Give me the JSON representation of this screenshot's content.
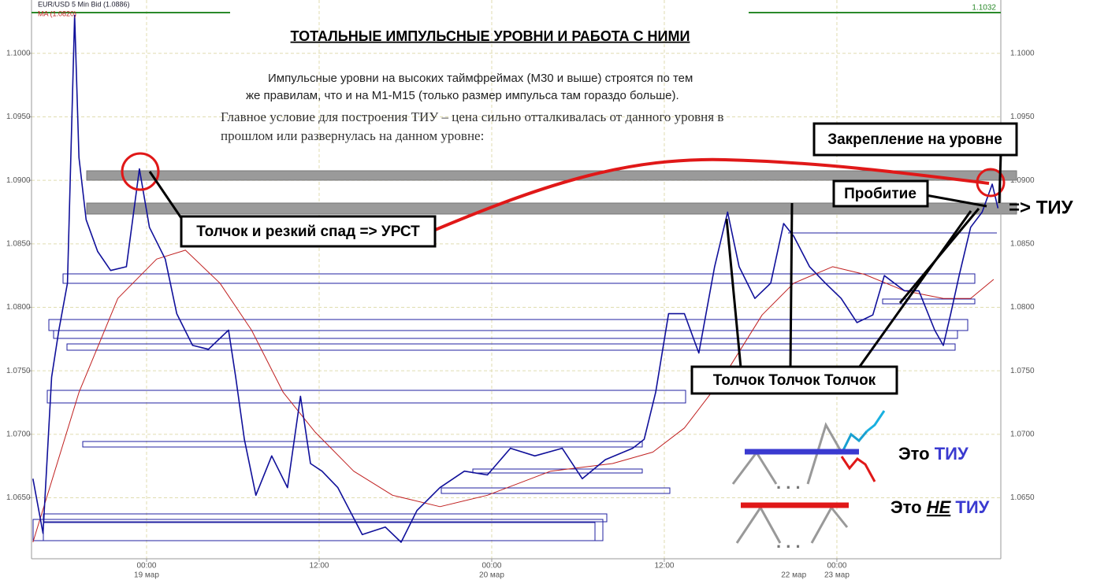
{
  "chart_data": {
    "type": "line",
    "header": {
      "instrument": "EUR/USD 5 Min Bid (1.0886)",
      "ma": "MA (1.0820)",
      "top_right": "1.1032"
    },
    "annotations": {
      "title": "ТОТАЛЬНЫЕ ИМПУЛЬСНЫЕ УРОВНИ И РАБОТА С НИМИ",
      "intro_lines": [
        "Импульсные уровни на высоких таймфреймах (М30 и выше) строятся по тем",
        "же правилам, что и на М1-М15 (только размер импульса там гораздо больше)."
      ],
      "condition_lines": [
        "Главное условие для построения ТИУ – цена сильно отталкивалась от данного уровня в",
        "прошлом или развернулась на данном уровне:"
      ],
      "push_urst": "Толчок и резкий спад => УРСТ",
      "fix": "Закрепление на уровне",
      "breakout": "Пробитие",
      "tiu": "=> ТИУ",
      "pushes": "Толчок Толчок Толчок",
      "is_tiu": [
        "Это",
        "ТИУ"
      ],
      "not_tiu": [
        "Это",
        "НЕ",
        "ТИУ"
      ]
    },
    "xlim": [
      0,
      67.4
    ],
    "xticks": [
      {
        "value": 8,
        "label": "00:00"
      },
      {
        "value": 20,
        "label": "12:00"
      },
      {
        "value": 32,
        "label": "00:00"
      },
      {
        "value": 44,
        "label": "12:00"
      },
      {
        "value": 56,
        "label": "00:00"
      }
    ],
    "xdates": [
      {
        "value": 8,
        "label": "19 мар"
      },
      {
        "value": 32,
        "label": "20 мар"
      },
      {
        "value": 53,
        "label": "22 мар"
      },
      {
        "value": 56,
        "label": "23 мар"
      }
    ],
    "ylim": [
      1.0602,
      1.1042
    ],
    "yticks": [
      {
        "value": 1.065,
        "label": "1.0650"
      },
      {
        "value": 1.07,
        "label": "1.0700"
      },
      {
        "value": 1.075,
        "label": "1.0750"
      },
      {
        "value": 1.08,
        "label": "1.0800"
      },
      {
        "value": 1.085,
        "label": "1.0850"
      },
      {
        "value": 1.09,
        "label": "1.0900"
      },
      {
        "value": 1.095,
        "label": "1.0950"
      },
      {
        "value": 1.1,
        "label": "1.1000"
      }
    ],
    "grid": true,
    "series": [
      {
        "name": "EUR/USD",
        "color": "#10109a",
        "x": [
          0.1,
          0.8,
          1.4,
          1.9,
          2.5,
          3.0,
          3.3,
          3.8,
          4.6,
          5.5,
          6.6,
          7.5,
          8.2,
          9.3,
          10.1,
          11.2,
          12.3,
          13.7,
          14.2,
          14.8,
          15.6,
          16.7,
          17.8,
          18.7,
          19.4,
          20.2,
          21.3,
          23.0,
          24.6,
          25.7,
          26.8,
          28.4,
          30.1,
          31.7,
          33.3,
          35.0,
          36.9,
          38.3,
          39.9,
          41.8,
          42.6,
          43.4,
          44.3,
          45.4,
          46.4,
          47.5,
          48.4,
          49.2,
          50.3,
          51.4,
          52.3,
          53.0,
          54.1,
          55.2,
          56.3,
          57.4,
          58.5,
          59.3,
          60.7,
          61.7,
          62.8,
          63.4,
          63.9,
          64.5,
          65.3,
          66.1,
          66.8,
          67.2
        ],
        "values": [
          1.0665,
          1.0622,
          1.0745,
          1.0782,
          1.0819,
          1.103,
          1.0918,
          1.0869,
          1.0844,
          1.0829,
          1.0832,
          1.0909,
          1.0863,
          1.0838,
          1.0795,
          1.077,
          1.0767,
          1.0782,
          1.0745,
          1.0696,
          1.0652,
          1.0683,
          1.0658,
          1.073,
          1.0677,
          1.0671,
          1.0658,
          1.0621,
          1.0627,
          1.0615,
          1.064,
          1.0658,
          1.0671,
          1.0668,
          1.0689,
          1.0683,
          1.0689,
          1.0665,
          1.068,
          1.0689,
          1.0696,
          1.0733,
          1.0795,
          1.0795,
          1.0764,
          1.0832,
          1.0875,
          1.0832,
          1.0807,
          1.0819,
          1.0866,
          1.0856,
          1.0832,
          1.0819,
          1.0807,
          1.0788,
          1.0794,
          1.0825,
          1.0813,
          1.0813,
          1.0782,
          1.077,
          1.0794,
          1.0825,
          1.0863,
          1.0875,
          1.0897,
          1.0878
        ]
      },
      {
        "name": "MA",
        "color": "#c02020",
        "x": [
          0.1,
          3.3,
          6.0,
          8.7,
          10.7,
          13.1,
          15.3,
          17.5,
          19.7,
          22.4,
          25.1,
          28.4,
          31.7,
          36.1,
          40.4,
          43.2,
          45.4,
          48.1,
          50.8,
          53.0,
          55.7,
          57.9,
          60.7,
          63.4,
          65.3,
          66.9
        ],
        "values": [
          1.0615,
          1.0733,
          1.0807,
          1.0838,
          1.0845,
          1.0819,
          1.0782,
          1.0733,
          1.0702,
          1.0671,
          1.0652,
          1.0643,
          1.0652,
          1.0671,
          1.0677,
          1.0686,
          1.0705,
          1.0745,
          1.0794,
          1.0819,
          1.0832,
          1.0826,
          1.0813,
          1.0807,
          1.0807,
          1.0822
        ]
      }
    ]
  }
}
